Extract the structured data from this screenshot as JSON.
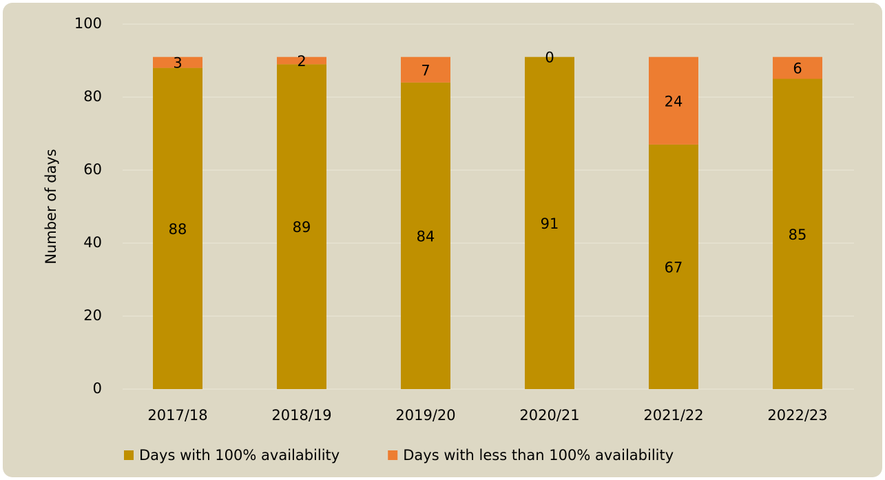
{
  "chart_data": {
    "type": "bar",
    "stacked": true,
    "y_label": "Number of days",
    "categories": [
      "2017/18",
      "2018/19",
      "2019/20",
      "2020/21",
      "2021/22",
      "2022/23"
    ],
    "series": [
      {
        "name": "Days with 100% availability",
        "color": "#bf9000",
        "values": [
          88,
          89,
          84,
          91,
          67,
          85
        ]
      },
      {
        "name": "Days with less than 100% availability",
        "color": "#ed7d31",
        "values": [
          3,
          2,
          7,
          0,
          24,
          6
        ]
      }
    ],
    "ylim": [
      0,
      100
    ],
    "yticks": [
      0,
      20,
      40,
      60,
      80,
      100
    ],
    "grid": true,
    "legend": "bottom"
  }
}
